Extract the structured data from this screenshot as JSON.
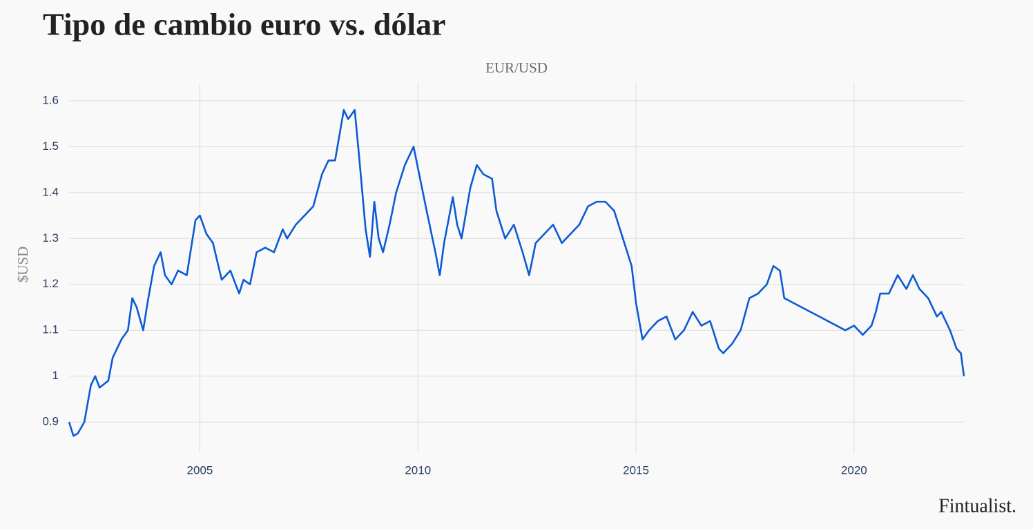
{
  "chart_data": {
    "type": "line",
    "title": "Tipo de cambio euro vs. dólar",
    "subtitle": "EUR/USD",
    "ylabel": "$USD",
    "brand": "Fintualist.",
    "color": "#0b5ad4",
    "grid": true,
    "xlim": [
      2002,
      2022.52
    ],
    "xticks": [
      2005,
      2010,
      2015,
      2020
    ],
    "ylim": [
      0.834,
      1.639
    ],
    "yticks": [
      0.9,
      1,
      1.1,
      1.2,
      1.3,
      1.4,
      1.5,
      1.6
    ],
    "x": [
      2002.0,
      2002.1,
      2002.2,
      2002.35,
      2002.5,
      2002.6,
      2002.7,
      2002.9,
      2003.0,
      2003.2,
      2003.35,
      2003.45,
      2003.55,
      2003.7,
      2003.8,
      2003.95,
      2004.1,
      2004.2,
      2004.35,
      2004.5,
      2004.7,
      2004.9,
      2005.0,
      2005.15,
      2005.3,
      2005.5,
      2005.7,
      2005.9,
      2006.0,
      2006.15,
      2006.3,
      2006.5,
      2006.7,
      2006.9,
      2007.0,
      2007.2,
      2007.4,
      2007.6,
      2007.8,
      2007.95,
      2008.1,
      2008.3,
      2008.4,
      2008.55,
      2008.65,
      2008.8,
      2008.9,
      2009.0,
      2009.1,
      2009.2,
      2009.35,
      2009.5,
      2009.7,
      2009.9,
      2010.05,
      2010.2,
      2010.4,
      2010.5,
      2010.6,
      2010.8,
      2010.9,
      2011.0,
      2011.2,
      2011.35,
      2011.5,
      2011.7,
      2011.8,
      2012.0,
      2012.2,
      2012.4,
      2012.55,
      2012.7,
      2012.9,
      2013.1,
      2013.3,
      2013.5,
      2013.7,
      2013.9,
      2014.1,
      2014.3,
      2014.5,
      2014.7,
      2014.9,
      2015.0,
      2015.15,
      2015.3,
      2015.5,
      2015.7,
      2015.9,
      2016.1,
      2016.3,
      2016.5,
      2016.7,
      2016.9,
      2017.0,
      2017.2,
      2017.4,
      2017.6,
      2017.8,
      2018.0,
      2018.15,
      2018.3,
      2018.4,
      2018.6,
      2018.8,
      2019.0,
      2019.2,
      2019.4,
      2019.6,
      2019.8,
      2020.0,
      2020.2,
      2020.4,
      2020.5,
      2020.6,
      2020.8,
      2021.0,
      2021.2,
      2021.35,
      2021.5,
      2021.7,
      2021.9,
      2022.0,
      2022.2,
      2022.35,
      2022.45,
      2022.52
    ],
    "values": [
      0.9,
      0.87,
      0.875,
      0.9,
      0.98,
      1.0,
      0.975,
      0.99,
      1.04,
      1.08,
      1.1,
      1.17,
      1.15,
      1.1,
      1.16,
      1.24,
      1.27,
      1.22,
      1.2,
      1.23,
      1.22,
      1.34,
      1.35,
      1.31,
      1.29,
      1.21,
      1.23,
      1.18,
      1.21,
      1.2,
      1.27,
      1.28,
      1.27,
      1.32,
      1.3,
      1.33,
      1.35,
      1.37,
      1.44,
      1.47,
      1.47,
      1.58,
      1.56,
      1.58,
      1.48,
      1.32,
      1.26,
      1.38,
      1.3,
      1.27,
      1.33,
      1.4,
      1.46,
      1.5,
      1.43,
      1.36,
      1.27,
      1.22,
      1.29,
      1.39,
      1.33,
      1.3,
      1.41,
      1.46,
      1.44,
      1.43,
      1.36,
      1.3,
      1.33,
      1.27,
      1.22,
      1.29,
      1.31,
      1.33,
      1.29,
      1.31,
      1.33,
      1.37,
      1.38,
      1.38,
      1.36,
      1.3,
      1.24,
      1.16,
      1.08,
      1.1,
      1.12,
      1.13,
      1.08,
      1.1,
      1.14,
      1.11,
      1.12,
      1.06,
      1.05,
      1.07,
      1.1,
      1.17,
      1.18,
      1.2,
      1.24,
      1.23,
      1.17,
      1.16,
      1.15,
      1.14,
      1.13,
      1.12,
      1.11,
      1.1,
      1.11,
      1.09,
      1.11,
      1.14,
      1.18,
      1.18,
      1.22,
      1.19,
      1.22,
      1.19,
      1.17,
      1.13,
      1.14,
      1.1,
      1.06,
      1.05,
      1.0
    ]
  }
}
